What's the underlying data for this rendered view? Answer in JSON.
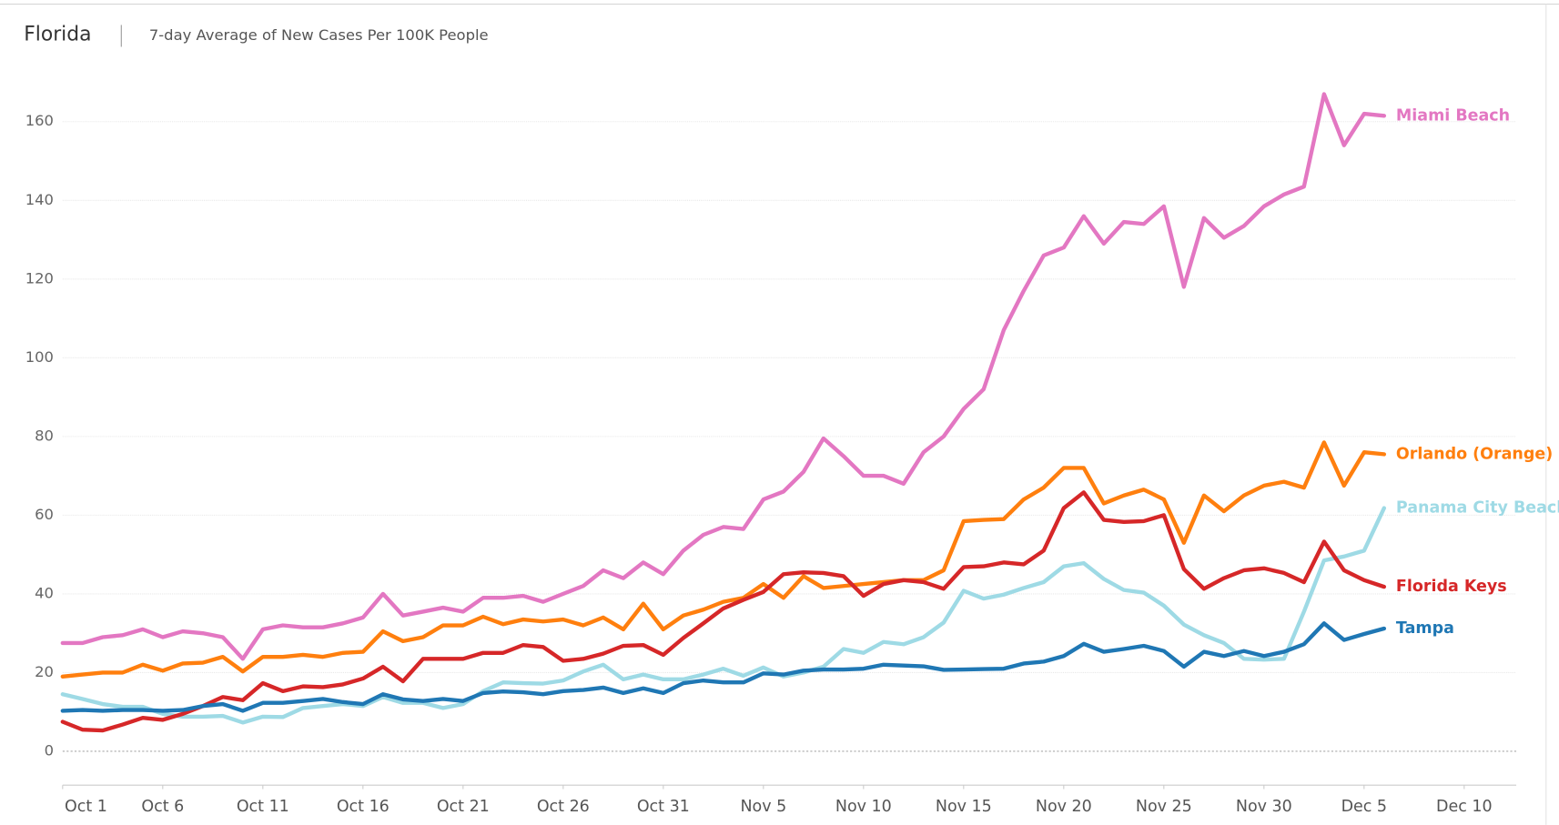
{
  "chart_data": {
    "type": "line",
    "title": "Florida",
    "subtitle": "7-day Average of New Cases Per 100K People",
    "x": [
      0,
      1,
      2,
      3,
      4,
      5,
      6,
      7,
      8,
      9,
      10,
      11,
      12,
      13,
      14,
      15,
      16,
      17,
      18,
      19,
      20,
      21,
      22,
      23,
      24,
      25,
      26,
      27,
      28,
      29,
      30,
      31,
      32,
      33,
      34,
      35,
      36,
      37,
      38,
      39,
      40,
      41,
      42,
      43,
      44,
      45,
      46,
      47,
      48,
      49,
      50,
      51,
      52,
      53,
      54,
      55,
      56,
      57,
      58,
      59,
      60,
      61,
      62,
      63,
      64,
      65,
      66
    ],
    "xlim": [
      0,
      72.6
    ],
    "xticks": [
      {
        "value": 0,
        "label": "Oct 1"
      },
      {
        "value": 5,
        "label": "Oct 6"
      },
      {
        "value": 10,
        "label": "Oct 11"
      },
      {
        "value": 15,
        "label": "Oct 16"
      },
      {
        "value": 20,
        "label": "Oct 21"
      },
      {
        "value": 25,
        "label": "Oct 26"
      },
      {
        "value": 30,
        "label": "Oct 31"
      },
      {
        "value": 35,
        "label": "Nov 5"
      },
      {
        "value": 40,
        "label": "Nov 10"
      },
      {
        "value": 45,
        "label": "Nov 15"
      },
      {
        "value": 50,
        "label": "Nov 20"
      },
      {
        "value": 55,
        "label": "Nov 25"
      },
      {
        "value": 60,
        "label": "Nov 30"
      },
      {
        "value": 65,
        "label": "Dec 5"
      },
      {
        "value": 70,
        "label": "Dec 10"
      }
    ],
    "ylim": [
      -8.6,
      177
    ],
    "yticks": [
      0,
      20,
      40,
      60,
      80,
      100,
      120,
      140,
      160
    ],
    "grid": true,
    "series": [
      {
        "name": "Miami Beach",
        "color": "#e377c2",
        "values": [
          27.5,
          27.5,
          29,
          29.5,
          31,
          29,
          30.5,
          30,
          29,
          23.5,
          31,
          32,
          31.5,
          31.5,
          32.5,
          34,
          40,
          34.5,
          35.5,
          36.5,
          35.5,
          39,
          39,
          39.5,
          38,
          40,
          42,
          46,
          44,
          48,
          45,
          51,
          55,
          57,
          56.5,
          64,
          66,
          71,
          79.5,
          75,
          70,
          70,
          68,
          76,
          80,
          87,
          92,
          107,
          117,
          126,
          128,
          136,
          129,
          134.5,
          134,
          138.5,
          118,
          135.5,
          130.5,
          133.5,
          138.5,
          141.5,
          143.5,
          167,
          154,
          162,
          161.5
        ]
      },
      {
        "name": "Orlando (Orange)",
        "color": "#ff7f0e",
        "values": [
          19,
          19.5,
          20,
          20,
          22,
          20.5,
          22.3,
          22.5,
          24,
          20.3,
          24,
          24,
          24.5,
          24,
          25,
          25.3,
          30.5,
          28,
          29,
          32,
          32,
          34.2,
          32.3,
          33.5,
          33,
          33.5,
          32,
          34,
          31,
          37.5,
          31,
          34.5,
          36,
          38,
          39,
          42.5,
          39,
          44.5,
          41.5,
          42,
          42.5,
          43,
          43.5,
          43.5,
          46,
          58.5,
          58.8,
          59,
          64,
          67,
          72,
          72,
          63,
          65,
          66.5,
          64,
          53,
          65,
          61,
          65,
          67.5,
          68.5,
          67,
          78.5,
          67.5,
          76,
          75.5
        ]
      },
      {
        "name": "Panama City Beach",
        "color": "#9edae5",
        "values": [
          14.5,
          13.3,
          12,
          11.3,
          11.3,
          9.5,
          8.8,
          8.8,
          9,
          7.3,
          8.8,
          8.7,
          11,
          11.5,
          12,
          11.5,
          13.8,
          12.3,
          12.3,
          11,
          12,
          15.3,
          17.5,
          17.3,
          17.2,
          18,
          20.3,
          22,
          18.3,
          19.5,
          18.3,
          18.3,
          19.5,
          21,
          19.2,
          21.3,
          19,
          20,
          21.5,
          26,
          25,
          27.8,
          27.2,
          29,
          32.7,
          40.8,
          38.8,
          39.8,
          41.5,
          43,
          47,
          47.8,
          43.8,
          41,
          40.3,
          37,
          32.2,
          29.5,
          27.5,
          23.5,
          23.3,
          23.5,
          35.5,
          48.5,
          49.5,
          51,
          61.8
        ]
      },
      {
        "name": "Florida Keys",
        "color": "#d62728",
        "values": [
          7.5,
          5.5,
          5.3,
          6.8,
          8.5,
          8,
          9.5,
          11.5,
          13.8,
          13,
          17.3,
          15.3,
          16.5,
          16.3,
          17,
          18.5,
          21.5,
          17.8,
          23.5,
          23.5,
          23.5,
          25,
          25,
          27,
          26.5,
          23,
          23.5,
          24.8,
          26.8,
          27,
          24.5,
          28.8,
          32.5,
          36.3,
          38.5,
          40.5,
          45,
          45.5,
          45.3,
          44.5,
          39.5,
          42.5,
          43.5,
          43,
          41.3,
          46.8,
          47,
          48,
          47.5,
          51,
          61.8,
          65.8,
          58.8,
          58.3,
          58.5,
          60,
          46.3,
          41.3,
          44,
          46,
          46.5,
          45.3,
          43,
          53.3,
          46,
          43.5,
          41.8
        ]
      },
      {
        "name": "Tampa",
        "color": "#1f77b4",
        "values": [
          10.3,
          10.5,
          10.3,
          10.5,
          10.5,
          10.3,
          10.5,
          11.5,
          12,
          10.3,
          12.3,
          12.3,
          12.8,
          13.3,
          12.5,
          12,
          14.5,
          13.2,
          12.8,
          13.3,
          12.8,
          14.8,
          15.2,
          15,
          14.5,
          15.3,
          15.6,
          16.2,
          14.8,
          16,
          14.8,
          17.3,
          18,
          17.5,
          17.5,
          19.8,
          19.5,
          20.5,
          20.8,
          20.8,
          21,
          22,
          21.8,
          21.6,
          20.7,
          20.8,
          20.9,
          21,
          22.3,
          22.8,
          24.2,
          27.3,
          25.3,
          26,
          26.8,
          25.5,
          21.5,
          25.3,
          24.2,
          25.5,
          24.2,
          25.3,
          27.2,
          32.5,
          28.3,
          29.8,
          31.2
        ]
      }
    ]
  }
}
